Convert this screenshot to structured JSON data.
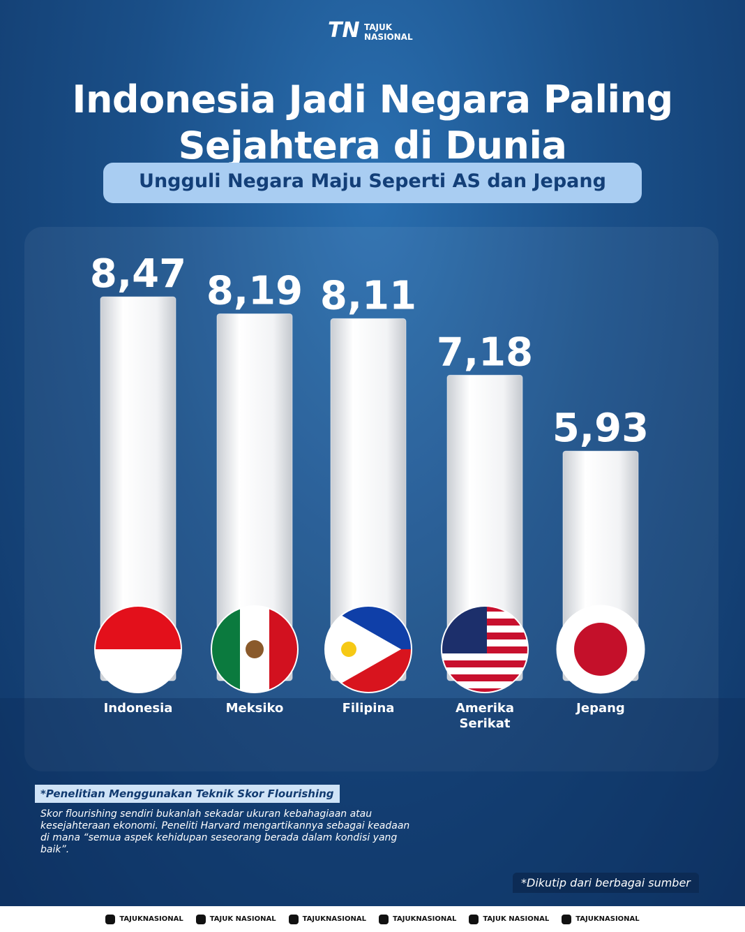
{
  "brand": {
    "logo": "TN",
    "name": "TAJUK NASIONAL"
  },
  "chart_data": {
    "type": "bar",
    "title": "Indonesia Jadi Negara Paling Sejahtera di Dunia",
    "subtitle": "Ungguli Negara Maju Seperti AS dan Jepang",
    "categories": [
      "Indonesia",
      "Meksiko",
      "Filipina",
      "Amerika Serikat",
      "Jepang"
    ],
    "values": [
      8.47,
      8.19,
      8.11,
      7.18,
      5.93
    ],
    "value_labels": [
      "8,47",
      "8,19",
      "8,11",
      "7,18",
      "5,93"
    ],
    "color": "#ffffff"
  },
  "note": {
    "heading": "*Penelitian Menggunakan Teknik Skor Flourishing",
    "body": "Skor flourishing sendiri bukanlah sekadar ukuran kebahagiaan atau kesejahteraan ekonomi. Peneliti Harvard mengartikannya sebagai keadaan di mana “semua aspek kehidupan seseorang berada dalam kondisi yang baik”."
  },
  "source": "*Dikutip dari berbagai sumber",
  "footer": [
    "TAJUKNASIONAL",
    "TAJUK NASIONAL",
    "TAJUKNASIONAL",
    "TAJUKNASIONAL",
    "TAJUK NASIONAL",
    "TAJUKNASIONAL"
  ]
}
